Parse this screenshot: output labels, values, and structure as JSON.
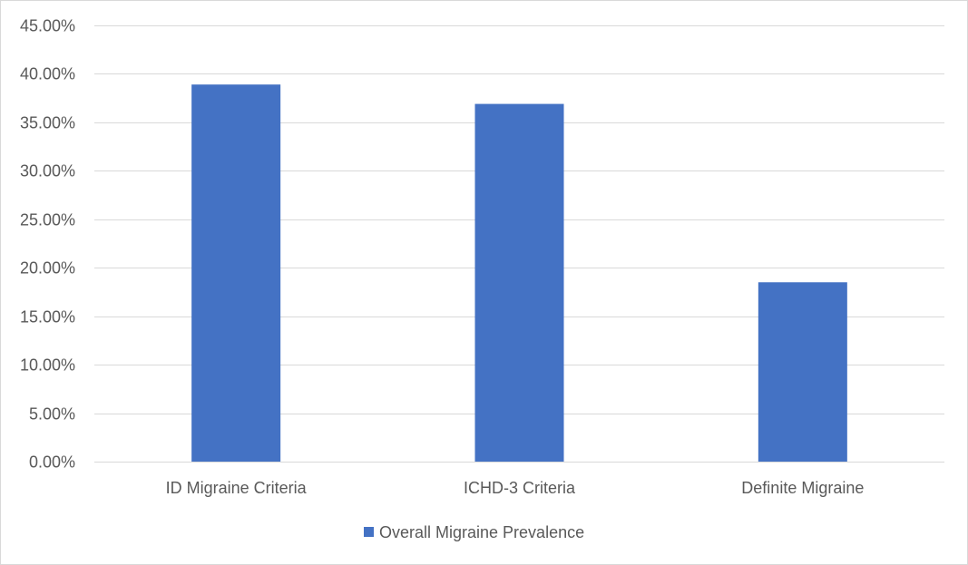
{
  "chart_data": {
    "type": "bar",
    "categories": [
      "ID Migraine Criteria",
      "ICHD-3 Criteria",
      "Definite Migraine"
    ],
    "series": [
      {
        "name": "Overall Migraine Prevalence",
        "values": [
          0.389,
          0.369,
          0.185
        ],
        "color": "#4472C4"
      }
    ],
    "ylim": [
      0,
      0.45
    ],
    "yticks": [
      0,
      0.05,
      0.1,
      0.15,
      0.2,
      0.25,
      0.3,
      0.35,
      0.4,
      0.45
    ],
    "ytick_labels": [
      "0.00%",
      "5.00%",
      "10.00%",
      "15.00%",
      "20.00%",
      "25.00%",
      "30.00%",
      "35.00%",
      "40.00%",
      "45.00%"
    ],
    "grid": true,
    "legend_position": "bottom"
  }
}
